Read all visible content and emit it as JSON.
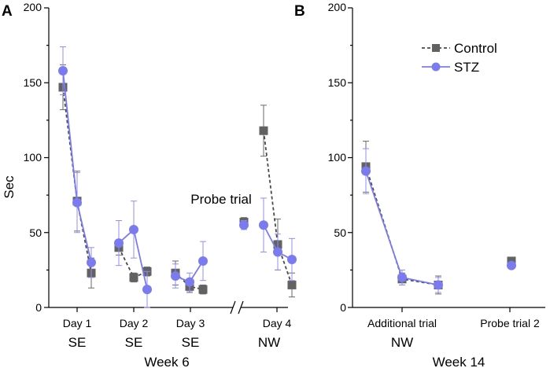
{
  "chart_data": [
    {
      "panel_label": "A",
      "type": "line",
      "ylabel": "Sec",
      "ylim": [
        0,
        200
      ],
      "yticks": [
        "0",
        "50",
        "100",
        "150",
        "200"
      ],
      "xtick_labels": [
        "Day 1",
        "Day 2",
        "Day 3",
        "Day 4"
      ],
      "session_labels": [
        "SE",
        "SE",
        "SE",
        "NW"
      ],
      "xlabel": "Week 6",
      "annotation": "Probe trial",
      "series": [
        {
          "name": "Control",
          "color": "#626262",
          "groups": [
            {
              "values": [
                147,
                71,
                23
              ],
              "errors": [
                15,
                20,
                10
              ]
            },
            {
              "values": [
                40,
                20,
                24
              ],
              "errors": [
                5,
                3,
                3
              ]
            },
            {
              "values": [
                23,
                14,
                12
              ],
              "errors": [
                8,
                4,
                3
              ]
            },
            {
              "values": [
                57
              ],
              "errors": [
                3
              ]
            },
            {
              "values": [
                118,
                42,
                15
              ],
              "errors": [
                17,
                17,
                8
              ]
            }
          ]
        },
        {
          "name": "STZ",
          "color": "#7b7bf0",
          "groups": [
            {
              "values": [
                158,
                70,
                30
              ],
              "errors": [
                16,
                20,
                10
              ]
            },
            {
              "values": [
                43,
                52,
                12
              ],
              "errors": [
                15,
                19,
                12
              ]
            },
            {
              "values": [
                21,
                17,
                31
              ],
              "errors": [
                8,
                6,
                13
              ]
            },
            {
              "values": [
                55
              ],
              "errors": [
                3
              ]
            },
            {
              "values": [
                55,
                37,
                32
              ],
              "errors": [
                18,
                12,
                14
              ]
            }
          ]
        }
      ]
    },
    {
      "panel_label": "B",
      "type": "line",
      "ylim": [
        0,
        200
      ],
      "yticks": [
        "0",
        "50",
        "100",
        "150",
        "200"
      ],
      "xtick_labels": [
        "Additional trial",
        "Probe trial 2"
      ],
      "session_labels": [
        "NW"
      ],
      "xlabel": "Week 14",
      "legend": [
        "Control",
        "STZ"
      ],
      "series": [
        {
          "name": "Control",
          "color": "#626262",
          "groups": [
            {
              "values": [
                94,
                19,
                15
              ],
              "errors": [
                17,
                4,
                6
              ]
            },
            {
              "values": [
                31
              ],
              "errors": [
                2
              ]
            }
          ]
        },
        {
          "name": "STZ",
          "color": "#7b7bf0",
          "groups": [
            {
              "values": [
                91,
                20,
                15
              ],
              "errors": [
                15,
                5,
                5
              ]
            },
            {
              "values": [
                28
              ],
              "errors": [
                2
              ]
            }
          ]
        }
      ]
    }
  ]
}
